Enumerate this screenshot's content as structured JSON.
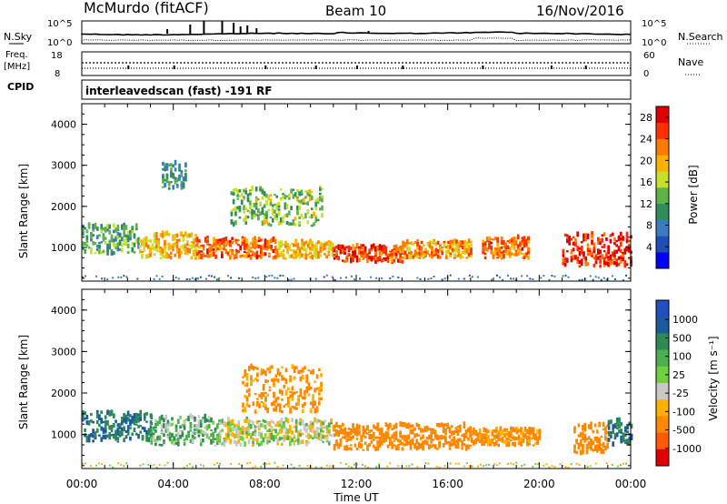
{
  "header": {
    "station": "McMurdo (fitACF)",
    "beam": "Beam 10",
    "date": "16/Nov/2016"
  },
  "sky_panel": {
    "left_label": "N.Sky",
    "left_ticks": [
      "10^5",
      "10^0"
    ],
    "right_label": "N.Search",
    "right_ticks": [
      "10^5",
      "10^0"
    ]
  },
  "freq_panel": {
    "left_label_1": "Freq.",
    "left_label_2": "[MHz]",
    "left_ticks": [
      "18",
      "8"
    ],
    "right_label": "Nave",
    "right_ticks": [
      "60",
      "0"
    ]
  },
  "cpid": {
    "label": "CPID",
    "text": "interleavedscan (fast) -191 RF"
  },
  "colors": {
    "power": [
      "#0000ff",
      "#1d4fb4",
      "#3a7cc4",
      "#2f8d5c",
      "#5fb24a",
      "#c8e02a",
      "#ffb000",
      "#ff7a00",
      "#ff3000",
      "#e00000"
    ],
    "velocity": [
      "#2050c0",
      "#1c5aa0",
      "#2e8a55",
      "#4cb050",
      "#70d040",
      "#c8c8c8",
      "#ffb000",
      "#ff8800",
      "#ff5a00",
      "#e00000"
    ]
  },
  "chart_data": [
    {
      "type": "heatmap",
      "title": "Power",
      "ylabel": "Slant Range [km]",
      "ylim": [
        180,
        4500
      ],
      "yticks": [
        "1000",
        "2000",
        "3000",
        "4000"
      ],
      "xticks": [
        "00:00",
        "04:00",
        "08:00",
        "12:00",
        "16:00",
        "20:00",
        "00:00"
      ],
      "colorbar": {
        "label": "Power [dB]",
        "ticks": [
          "4",
          "8",
          "12",
          "16",
          "20",
          "24",
          "28"
        ],
        "range": [
          0,
          30
        ]
      },
      "echo_regions": [
        {
          "t": [
            0.0,
            2.5
          ],
          "r": [
            800,
            1500
          ],
          "level": 12
        },
        {
          "t": [
            2.5,
            5.0
          ],
          "r": [
            700,
            1300
          ],
          "level": 20
        },
        {
          "t": [
            5.0,
            8.5
          ],
          "r": [
            700,
            1200
          ],
          "level": 24
        },
        {
          "t": [
            8.5,
            11.0
          ],
          "r": [
            700,
            1100
          ],
          "level": 20
        },
        {
          "t": [
            11.0,
            14.0
          ],
          "r": [
            600,
            1000
          ],
          "level": 26
        },
        {
          "t": [
            14.0,
            17.0
          ],
          "r": [
            700,
            1100
          ],
          "level": 22
        },
        {
          "t": [
            17.5,
            19.5
          ],
          "r": [
            700,
            1200
          ],
          "level": 24
        },
        {
          "t": [
            21.0,
            24.0
          ],
          "r": [
            500,
            1300
          ],
          "level": 28
        },
        {
          "t": [
            6.5,
            10.5
          ],
          "r": [
            1500,
            2400
          ],
          "level": 14
        },
        {
          "t": [
            3.5,
            4.5
          ],
          "r": [
            2400,
            3000
          ],
          "level": 10
        }
      ]
    },
    {
      "type": "heatmap",
      "title": "Velocity",
      "ylabel": "Slant Range [km]",
      "ylim": [
        180,
        4500
      ],
      "yticks": [
        "1000",
        "2000",
        "3000",
        "4000"
      ],
      "xticks": [
        "00:00",
        "04:00",
        "08:00",
        "12:00",
        "16:00",
        "20:00",
        "00:00"
      ],
      "xlabel": "Time UT",
      "colorbar": {
        "label": "Velocity [m s⁻¹]",
        "ticks": [
          "1000",
          "500",
          "100",
          "25",
          "-25",
          "-100",
          "-500",
          "-1000"
        ]
      },
      "echo_regions": [
        {
          "t": [
            0.0,
            3.0
          ],
          "r": [
            800,
            1500
          ],
          "velocity": 300
        },
        {
          "t": [
            3.0,
            6.0
          ],
          "r": [
            700,
            1400
          ],
          "velocity": 80
        },
        {
          "t": [
            6.0,
            11.0
          ],
          "r": [
            700,
            1300
          ],
          "velocity": 0
        },
        {
          "t": [
            7.0,
            10.5
          ],
          "r": [
            1500,
            2600
          ],
          "velocity": -150
        },
        {
          "t": [
            11.0,
            17.0
          ],
          "r": [
            600,
            1200
          ],
          "velocity": -200
        },
        {
          "t": [
            17.0,
            20.0
          ],
          "r": [
            700,
            1100
          ],
          "velocity": -150
        },
        {
          "t": [
            21.5,
            23.0
          ],
          "r": [
            500,
            1200
          ],
          "velocity": -200
        },
        {
          "t": [
            23.0,
            24.0
          ],
          "r": [
            700,
            1300
          ],
          "velocity": 300
        }
      ]
    }
  ]
}
